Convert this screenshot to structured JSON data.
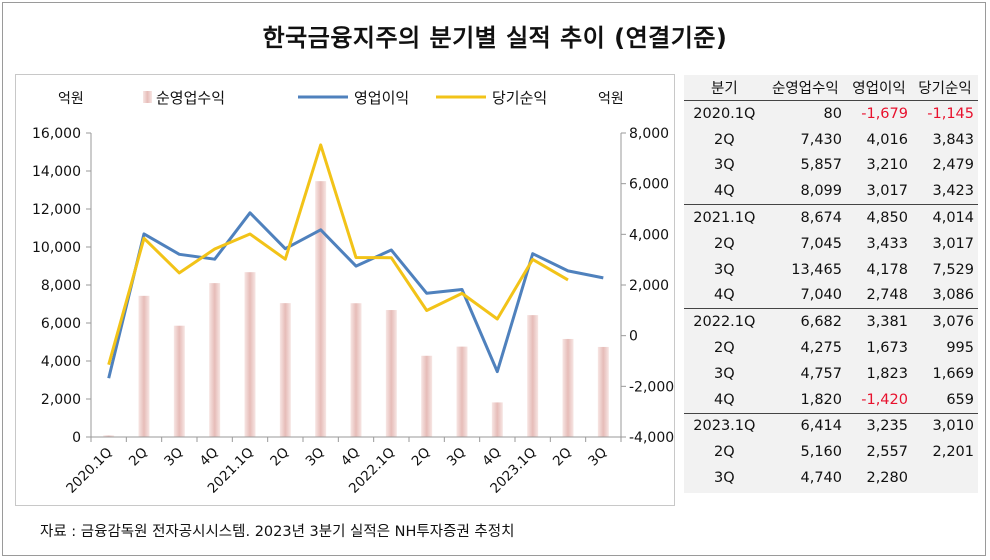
{
  "title": "한국금융지주의 분기별 실적 추이 (연결기준)",
  "source_note": "자료 : 금융감독원 전자공시시스템. 2023년 3분기 실적은 NH투자증권 추정치",
  "colors": {
    "revenue": "#e8c4c0",
    "operating": "#4f81bd",
    "net": "#f2c318",
    "negative": "#e8112d"
  },
  "chart_data": {
    "type": "bar",
    "left_unit": "억원",
    "right_unit": "억원",
    "categories": [
      "2020.1Q",
      "2Q",
      "3Q",
      "4Q",
      "2021.1Q",
      "2Q",
      "3Q",
      "4Q",
      "2022.1Q",
      "2Q",
      "3Q",
      "4Q",
      "2023.1Q",
      "2Q",
      "3Q"
    ],
    "series": [
      {
        "name": "순영업수익",
        "type": "bar",
        "axis": "left",
        "values": [
          80,
          7430,
          5857,
          8099,
          8674,
          7045,
          13465,
          7040,
          6682,
          4275,
          4757,
          1820,
          6414,
          5160,
          4740
        ]
      },
      {
        "name": "영업이익",
        "type": "line",
        "axis": "right",
        "values": [
          -1679,
          4016,
          3210,
          3017,
          4850,
          3433,
          4178,
          2748,
          3381,
          1673,
          1823,
          -1420,
          3235,
          2557,
          2280
        ]
      },
      {
        "name": "당기순익",
        "type": "line",
        "axis": "right",
        "values": [
          -1145,
          3843,
          2479,
          3423,
          4014,
          3017,
          7529,
          3086,
          3076,
          995,
          1669,
          659,
          3010,
          2201,
          null
        ]
      }
    ],
    "y_left": {
      "range": [
        0,
        16000
      ],
      "ticks": [
        "0",
        "2,000",
        "4,000",
        "6,000",
        "8,000",
        "10,000",
        "12,000",
        "14,000",
        "16,000"
      ]
    },
    "y_right": {
      "range": [
        -4000,
        8000
      ],
      "ticks": [
        "-4,000",
        "-2,000",
        "0",
        "2,000",
        "4,000",
        "6,000",
        "8,000"
      ]
    },
    "legend_position": "top",
    "grid": false
  },
  "table": {
    "headers": [
      "분기",
      "순영업수익",
      "영업이익",
      "당기순익"
    ],
    "rows": [
      [
        "2020.1Q",
        "80",
        "-1,679",
        "-1,145"
      ],
      [
        "2Q",
        "7,430",
        "4,016",
        "3,843"
      ],
      [
        "3Q",
        "5,857",
        "3,210",
        "2,479"
      ],
      [
        "4Q",
        "8,099",
        "3,017",
        "3,423"
      ],
      [
        "2021.1Q",
        "8,674",
        "4,850",
        "4,014"
      ],
      [
        "2Q",
        "7,045",
        "3,433",
        "3,017"
      ],
      [
        "3Q",
        "13,465",
        "4,178",
        "7,529"
      ],
      [
        "4Q",
        "7,040",
        "2,748",
        "3,086"
      ],
      [
        "2022.1Q",
        "6,682",
        "3,381",
        "3,076"
      ],
      [
        "2Q",
        "4,275",
        "1,673",
        "995"
      ],
      [
        "3Q",
        "4,757",
        "1,823",
        "1,669"
      ],
      [
        "4Q",
        "1,820",
        "-1,420",
        "659"
      ],
      [
        "2023.1Q",
        "6,414",
        "3,235",
        "3,010"
      ],
      [
        "2Q",
        "5,160",
        "2,557",
        "2,201"
      ],
      [
        "3Q",
        "4,740",
        "2,280",
        ""
      ]
    ]
  }
}
